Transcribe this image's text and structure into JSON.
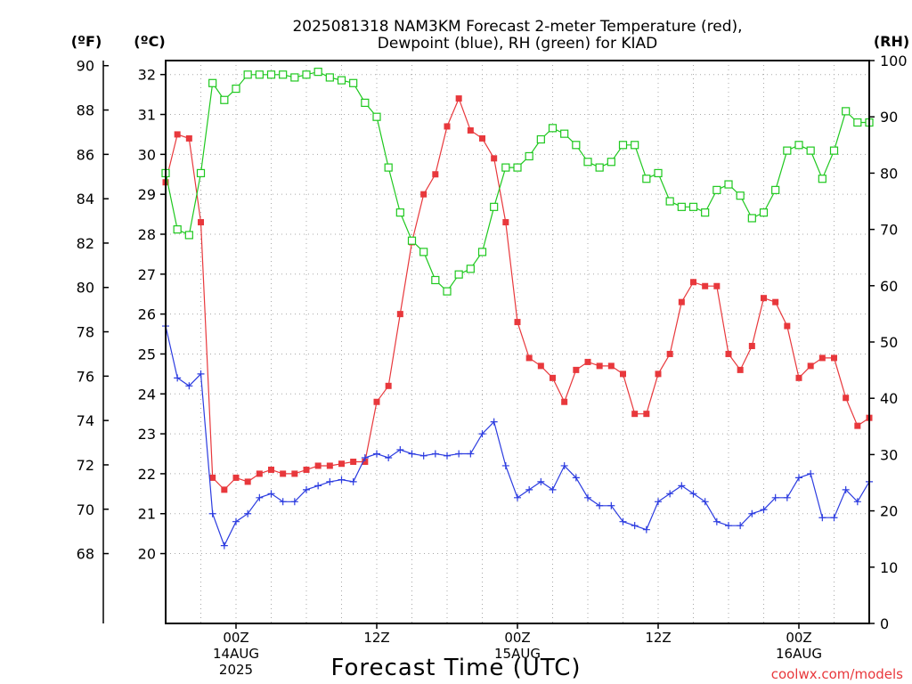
{
  "chart_data": {
    "type": "line",
    "title_lines": [
      "2025081318 NAM3KM Forecast 2-meter Temperature (red),",
      "Dewpoint (blue), RH (green) for KIAD"
    ],
    "units": {
      "left_f": "(ºF)",
      "left_c": "(ºC)",
      "right": "(RH)"
    },
    "xlabel": "Forecast Time (UTC)",
    "credit": "coolwx.com/models",
    "x_range_hours": [
      0,
      60
    ],
    "y_c_range": [
      18.25,
      32.35
    ],
    "y_f_ticks": [
      68,
      70,
      72,
      74,
      76,
      78,
      80,
      82,
      84,
      86,
      88,
      90
    ],
    "y_c_ticks": [
      20,
      21,
      22,
      23,
      24,
      25,
      26,
      27,
      28,
      29,
      30,
      31,
      32
    ],
    "rh_range": [
      0,
      100
    ],
    "rh_ticks": [
      0,
      10,
      20,
      30,
      40,
      50,
      60,
      70,
      80,
      90,
      100
    ],
    "x_ticks": [
      {
        "hour": 6,
        "lines": [
          "00Z",
          "14AUG",
          "2025"
        ]
      },
      {
        "hour": 18,
        "lines": [
          "12Z"
        ]
      },
      {
        "hour": 30,
        "lines": [
          "00Z",
          "15AUG"
        ]
      },
      {
        "hour": 42,
        "lines": [
          "12Z"
        ]
      },
      {
        "hour": 54,
        "lines": [
          "00Z",
          "16AUG"
        ]
      }
    ],
    "grid": true,
    "series": [
      {
        "name": "Temperature",
        "color": "#e8383c",
        "axis": "c",
        "marker": "filled-square",
        "values": [
          29.3,
          30.5,
          30.4,
          28.3,
          21.9,
          21.6,
          21.9,
          21.8,
          22.0,
          22.1,
          22.0,
          22.0,
          22.1,
          22.2,
          22.2,
          22.25,
          22.3,
          22.3,
          23.8,
          24.2,
          26.0,
          27.8,
          29.0,
          29.5,
          30.7,
          31.4,
          30.6,
          30.4,
          29.9,
          28.3,
          25.8,
          24.9,
          24.7,
          24.4,
          23.8,
          24.6,
          24.8,
          24.7,
          24.7,
          24.5,
          23.5,
          23.5,
          24.5,
          25.0,
          26.3,
          26.8,
          26.7,
          26.7,
          25.0,
          24.6,
          25.2,
          26.4,
          26.3,
          25.7,
          24.4,
          24.7,
          24.9,
          24.9,
          23.9,
          23.2,
          23.4
        ]
      },
      {
        "name": "Dewpoint",
        "color": "#2c3ce0",
        "axis": "c",
        "marker": "plus",
        "values": [
          25.7,
          24.4,
          24.2,
          24.5,
          21.0,
          20.2,
          20.8,
          21.0,
          21.4,
          21.5,
          21.3,
          21.3,
          21.6,
          21.7,
          21.8,
          21.85,
          21.8,
          22.4,
          22.5,
          22.4,
          22.6,
          22.5,
          22.45,
          22.5,
          22.45,
          22.5,
          22.5,
          23.0,
          23.3,
          22.2,
          21.4,
          21.6,
          21.8,
          21.6,
          22.2,
          21.9,
          21.4,
          21.2,
          21.2,
          20.8,
          20.7,
          20.6,
          21.3,
          21.5,
          21.7,
          21.5,
          21.3,
          20.8,
          20.7,
          20.7,
          21.0,
          21.1,
          21.4,
          21.4,
          21.9,
          22.0,
          20.9,
          20.9,
          21.6,
          21.3,
          21.8
        ]
      },
      {
        "name": "RH",
        "color": "#1ec81e",
        "axis": "rh",
        "marker": "open-square",
        "values": [
          80,
          70,
          69,
          80,
          96,
          93,
          95,
          97.5,
          97.5,
          97.5,
          97.5,
          97,
          97.5,
          98,
          97,
          96.5,
          96,
          92.5,
          90,
          81,
          73,
          68,
          66,
          61,
          59,
          62,
          63,
          66,
          74,
          81,
          81,
          83,
          86,
          88,
          87,
          85,
          82,
          81,
          82,
          85,
          85,
          79,
          80,
          75,
          74,
          74,
          73,
          77,
          78,
          76,
          72,
          73,
          77,
          84,
          85,
          84,
          79,
          84,
          91,
          89,
          89
        ]
      }
    ]
  }
}
